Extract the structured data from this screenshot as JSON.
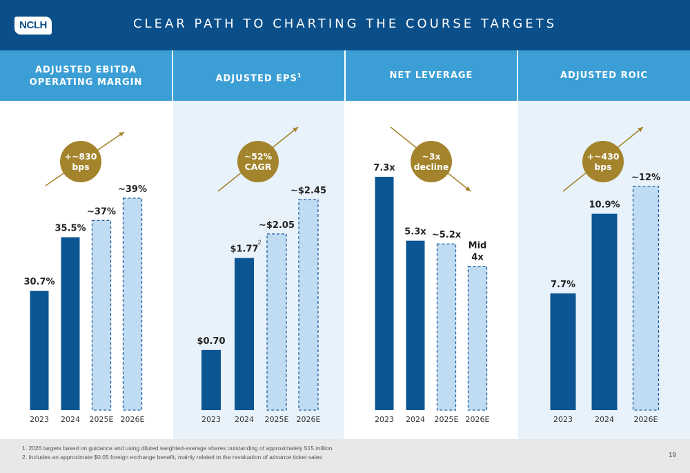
{
  "header": {
    "logo_text": "NCLH",
    "title": "CLEAR PATH TO CHARTING THE COURSE TARGETS"
  },
  "colors": {
    "header": "#0b4f8a",
    "panel_header": "#3b9fd6",
    "actual_bar": "#0b5592",
    "target_bar": "#bfdcf3",
    "target_border": "#1f5f9c",
    "badge": "#a3842c",
    "arrow": "#a3842c"
  },
  "panels": [
    {
      "title_lines": [
        "ADJUSTED EBITDA",
        "OPERATING MARGIN"
      ],
      "badge_lines": [
        "+~830",
        "bps"
      ],
      "arrow_direction": "up"
    },
    {
      "title_lines": [
        "ADJUSTED EPS"
      ],
      "title_superscript": "1",
      "badge_lines": [
        "~52%",
        "CAGR"
      ],
      "arrow_direction": "up"
    },
    {
      "title_lines": [
        "NET LEVERAGE"
      ],
      "badge_lines": [
        "~3x",
        "decline"
      ],
      "arrow_direction": "down"
    },
    {
      "title_lines": [
        "ADJUSTED ROIC"
      ],
      "badge_lines": [
        "+~430",
        "bps"
      ],
      "arrow_direction": "up"
    }
  ],
  "chart_data": [
    {
      "type": "bar",
      "title": "ADJUSTED EBITDA OPERATING MARGIN",
      "unit": "%",
      "categories": [
        "2023",
        "2024",
        "2025E",
        "2026E"
      ],
      "values": [
        30.7,
        35.5,
        37,
        39
      ],
      "labels": [
        "30.7%",
        "35.5%",
        "~37%",
        "~39%"
      ],
      "bar_styles": [
        "actual",
        "actual",
        "target",
        "target"
      ],
      "ylim": [
        20,
        39
      ]
    },
    {
      "type": "bar",
      "title": "ADJUSTED EPS",
      "unit": "$",
      "categories": [
        "2023",
        "2024",
        "2025E",
        "2026E"
      ],
      "values": [
        0.7,
        1.77,
        2.05,
        2.45
      ],
      "labels": [
        "$0.70",
        "$1.77",
        "~$2.05",
        "~$2.45"
      ],
      "label_superscripts": [
        "",
        "2",
        "",
        ""
      ],
      "bar_styles": [
        "actual",
        "actual",
        "target",
        "target"
      ],
      "ylim": [
        0,
        2.45
      ]
    },
    {
      "type": "bar",
      "title": "NET LEVERAGE",
      "unit": "x",
      "categories": [
        "2023",
        "2024",
        "2025E",
        "2026E"
      ],
      "values": [
        7.3,
        5.3,
        5.2,
        4.5
      ],
      "labels": [
        "7.3x",
        "5.3x",
        "~5.2x",
        "Mid 4x"
      ],
      "bar_styles": [
        "actual",
        "actual",
        "target",
        "target"
      ],
      "ylim": [
        0,
        7.3
      ]
    },
    {
      "type": "bar",
      "title": "ADJUSTED ROIC",
      "unit": "%",
      "categories": [
        "2023",
        "2024",
        "2026E"
      ],
      "values": [
        7.7,
        10.9,
        12
      ],
      "labels": [
        "7.7%",
        "10.9%",
        "~12%"
      ],
      "bar_styles": [
        "actual",
        "actual",
        "target"
      ],
      "ylim": [
        3,
        12
      ]
    }
  ],
  "footnotes": [
    "1.  2026 targets based on guidance and using diluted weighted-average shares outstanding of approximately 515 million.",
    "2. Includes an approximate $0.05 foreign exchange benefit, mainly related to the revaluation of advance ticket sales"
  ],
  "page_number": "19"
}
